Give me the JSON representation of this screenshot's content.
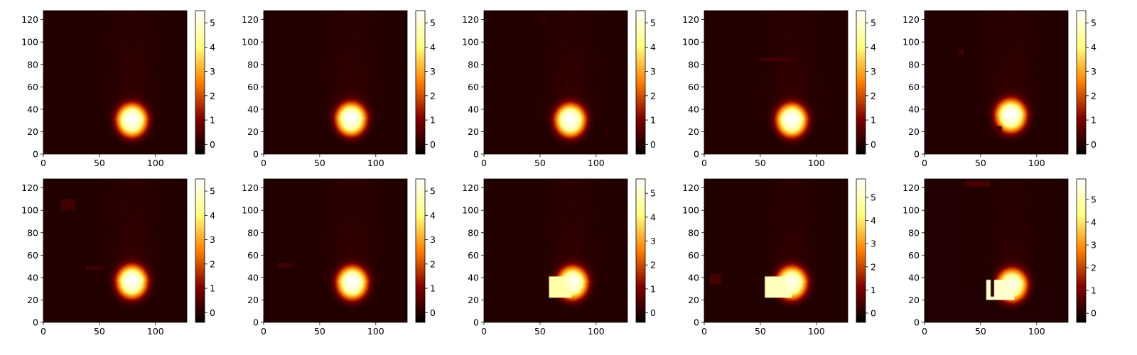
{
  "chart_data": [
    {
      "type": "heatmap",
      "x_ticks": [
        0,
        50,
        100
      ],
      "y_ticks": [
        0,
        20,
        40,
        60,
        80,
        100,
        120
      ],
      "xlim": [
        0,
        128
      ],
      "ylim": [
        0,
        128
      ],
      "colormap": "afmhot",
      "colorbar": {
        "min": -0.4,
        "max": 5.5,
        "ticks": [
          0,
          1,
          2,
          3,
          4,
          5
        ]
      },
      "blob": {
        "cx": 79,
        "cy": 30,
        "rx": 13,
        "ry": 14,
        "peak": 5.3
      },
      "patches": []
    },
    {
      "type": "heatmap",
      "x_ticks": [
        0,
        50,
        100
      ],
      "y_ticks": [
        0,
        20,
        40,
        60,
        80,
        100,
        120
      ],
      "xlim": [
        0,
        128
      ],
      "ylim": [
        0,
        128
      ],
      "colormap": "afmhot",
      "colorbar": {
        "min": -0.4,
        "max": 5.5,
        "ticks": [
          0,
          1,
          2,
          3,
          4,
          5
        ]
      },
      "blob": {
        "cx": 78,
        "cy": 31,
        "rx": 13,
        "ry": 14,
        "peak": 5.3
      },
      "patches": []
    },
    {
      "type": "heatmap",
      "x_ticks": [
        0,
        50,
        100
      ],
      "y_ticks": [
        0,
        20,
        40,
        60,
        80,
        100,
        120
      ],
      "xlim": [
        0,
        128
      ],
      "ylim": [
        0,
        128
      ],
      "colormap": "afmhot",
      "colorbar": {
        "min": -0.4,
        "max": 5.5,
        "ticks": [
          0,
          1,
          2,
          3,
          4,
          5
        ]
      },
      "blob": {
        "cx": 77,
        "cy": 30,
        "rx": 13,
        "ry": 14,
        "peak": 5.3
      },
      "patches": [
        {
          "x0": 50,
          "x1": 57,
          "y0": 117,
          "y1": 120,
          "value": 0.2
        },
        {
          "x0": 108,
          "x1": 111,
          "y0": 15,
          "y1": 22,
          "value": 0.2
        }
      ]
    },
    {
      "type": "heatmap",
      "x_ticks": [
        0,
        50,
        100
      ],
      "y_ticks": [
        0,
        20,
        40,
        60,
        80,
        100,
        120
      ],
      "xlim": [
        0,
        128
      ],
      "ylim": [
        0,
        128
      ],
      "colormap": "afmhot",
      "colorbar": {
        "min": -0.4,
        "max": 5.5,
        "ticks": [
          0,
          1,
          2,
          3,
          4,
          5
        ]
      },
      "blob": {
        "cx": 78,
        "cy": 30,
        "rx": 13,
        "ry": 14,
        "peak": 5.3
      },
      "patches": [
        {
          "x0": 49,
          "x1": 79,
          "y0": 83,
          "y1": 86,
          "value": 0.35
        }
      ]
    },
    {
      "type": "heatmap",
      "x_ticks": [
        0,
        50,
        100
      ],
      "y_ticks": [
        0,
        20,
        40,
        60,
        80,
        100,
        120
      ],
      "xlim": [
        0,
        128
      ],
      "ylim": [
        0,
        128
      ],
      "colormap": "afmhot",
      "colorbar": {
        "min": -0.4,
        "max": 5.5,
        "ticks": [
          0,
          1,
          2,
          3,
          4,
          5
        ]
      },
      "blob": {
        "cx": 77,
        "cy": 34,
        "rx": 13,
        "ry": 14,
        "peak": 5.3
      },
      "patches": [
        {
          "x0": 30,
          "x1": 35,
          "y0": 89,
          "y1": 94,
          "value": 0.3
        },
        {
          "x0": 56,
          "x1": 69,
          "y0": 15,
          "y1": 25,
          "value": 0.1
        }
      ]
    },
    {
      "type": "heatmap",
      "x_ticks": [
        0,
        50,
        100
      ],
      "y_ticks": [
        0,
        20,
        40,
        60,
        80,
        100,
        120
      ],
      "xlim": [
        0,
        128
      ],
      "ylim": [
        0,
        128
      ],
      "colormap": "afmhot",
      "colorbar": {
        "min": -0.4,
        "max": 5.5,
        "ticks": [
          0,
          1,
          2,
          3,
          4,
          5
        ]
      },
      "blob": {
        "cx": 79,
        "cy": 36,
        "rx": 13,
        "ry": 14,
        "peak": 5.3
      },
      "patches": [
        {
          "x0": 16,
          "x1": 28,
          "y0": 100,
          "y1": 110,
          "value": 0.35
        },
        {
          "x0": 38,
          "x1": 53,
          "y0": 47,
          "y1": 50,
          "value": 0.35
        }
      ]
    },
    {
      "type": "heatmap",
      "x_ticks": [
        0,
        50,
        100
      ],
      "y_ticks": [
        0,
        20,
        40,
        60,
        80,
        100,
        120
      ],
      "xlim": [
        0,
        128
      ],
      "ylim": [
        0,
        128
      ],
      "colormap": "afmhot",
      "colorbar": {
        "min": -0.4,
        "max": 5.5,
        "ticks": [
          0,
          1,
          2,
          3,
          4,
          5
        ]
      },
      "blob": {
        "cx": 79,
        "cy": 35,
        "rx": 13,
        "ry": 14,
        "peak": 5.3
      },
      "patches": [
        {
          "x0": 12,
          "x1": 26,
          "y0": 49,
          "y1": 53,
          "value": 0.35
        }
      ]
    },
    {
      "type": "heatmap",
      "x_ticks": [
        0,
        50,
        100
      ],
      "y_ticks": [
        0,
        20,
        40,
        60,
        80,
        100,
        120
      ],
      "xlim": [
        0,
        128
      ],
      "ylim": [
        0,
        128
      ],
      "colormap": "afmhot",
      "colorbar": {
        "min": -0.4,
        "max": 5.6,
        "ticks": [
          0,
          1,
          2,
          3,
          4,
          5
        ]
      },
      "blob": {
        "cx": 79,
        "cy": 35,
        "rx": 13,
        "ry": 14,
        "peak": 5.3
      },
      "patches": [
        {
          "x0": 58,
          "x1": 78,
          "y0": 22,
          "y1": 41,
          "value": 4.6
        }
      ]
    },
    {
      "type": "heatmap",
      "x_ticks": [
        0,
        50,
        100
      ],
      "y_ticks": [
        0,
        20,
        40,
        60,
        80,
        100,
        120
      ],
      "xlim": [
        0,
        128
      ],
      "ylim": [
        0,
        128
      ],
      "colormap": "afmhot",
      "colorbar": {
        "min": -0.4,
        "max": 5.8,
        "ticks": [
          0,
          1,
          2,
          3,
          4,
          5
        ]
      },
      "blob": {
        "cx": 78,
        "cy": 35,
        "rx": 13,
        "ry": 14,
        "peak": 5.4
      },
      "patches": [
        {
          "x0": 5,
          "x1": 15,
          "y0": 34,
          "y1": 43,
          "value": 0.45
        },
        {
          "x0": 54,
          "x1": 78,
          "y0": 22,
          "y1": 41,
          "value": 5.0
        }
      ]
    },
    {
      "type": "heatmap",
      "x_ticks": [
        0,
        50,
        100
      ],
      "y_ticks": [
        0,
        20,
        40,
        60,
        80,
        100,
        120
      ],
      "xlim": [
        0,
        128
      ],
      "ylim": [
        0,
        128
      ],
      "colormap": "afmhot",
      "colorbar": {
        "min": -0.4,
        "max": 5.9,
        "ticks": [
          0,
          1,
          2,
          3,
          4,
          5
        ]
      },
      "blob": {
        "cx": 78,
        "cy": 33,
        "rx": 13,
        "ry": 14,
        "peak": 5.4
      },
      "patches": [
        {
          "x0": 36,
          "x1": 58,
          "y0": 121,
          "y1": 126,
          "value": 0.5
        },
        {
          "x0": 55,
          "x1": 80,
          "y0": 20,
          "y1": 38,
          "value": 5.3
        },
        {
          "x0": 59,
          "x1": 62,
          "y0": 23,
          "y1": 58,
          "value": -0.3
        }
      ]
    }
  ]
}
